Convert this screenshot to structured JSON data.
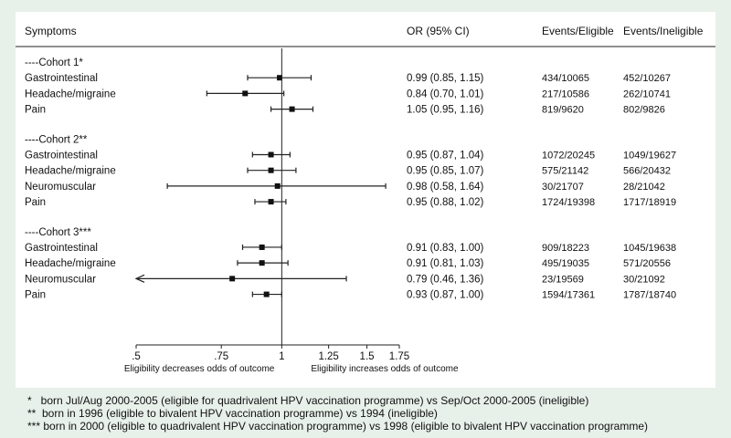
{
  "chart_data": {
    "type": "forest",
    "xscale": "log",
    "xlim": [
      0.5,
      1.75
    ],
    "reference": 1,
    "columns": {
      "symptoms": "Symptoms",
      "or": "OR (95% CI)",
      "eligible": "Events/Eligible",
      "ineligible": "Events/Ineligible"
    },
    "xticks": [
      {
        "label": ".5",
        "value": 0.5
      },
      {
        "label": ".75",
        "value": 0.75
      },
      {
        "label": "1",
        "value": 1
      },
      {
        "label": "1.25",
        "value": 1.25
      },
      {
        "label": "1.5",
        "value": 1.5
      },
      {
        "label": "1.75",
        "value": 1.75
      }
    ],
    "xlabel_left": "Eligibility decreases odds of outcome",
    "xlabel_right": "Eligibility increases odds of outcome",
    "groups": [
      {
        "label": "----Cohort 1*",
        "rows": [
          {
            "symptom": "Gastrointestinal",
            "or": 0.99,
            "lo": 0.85,
            "hi": 1.15,
            "or_text": "0.99 (0.85, 1.15)",
            "eligible": "434/10065",
            "ineligible": "452/10267"
          },
          {
            "symptom": "Headache/migraine",
            "or": 0.84,
            "lo": 0.7,
            "hi": 1.01,
            "or_text": "0.84 (0.70, 1.01)",
            "eligible": "217/10586",
            "ineligible": "262/10741"
          },
          {
            "symptom": "Pain",
            "or": 1.05,
            "lo": 0.95,
            "hi": 1.16,
            "or_text": "1.05 (0.95, 1.16)",
            "eligible": "819/9620",
            "ineligible": "802/9826"
          }
        ]
      },
      {
        "label": "----Cohort 2**",
        "rows": [
          {
            "symptom": "Gastrointestinal",
            "or": 0.95,
            "lo": 0.87,
            "hi": 1.04,
            "or_text": "0.95 (0.87, 1.04)",
            "eligible": "1072/20245",
            "ineligible": "1049/19627"
          },
          {
            "symptom": "Headache/migraine",
            "or": 0.95,
            "lo": 0.85,
            "hi": 1.07,
            "or_text": "0.95 (0.85, 1.07)",
            "eligible": "575/21142",
            "ineligible": "566/20432"
          },
          {
            "symptom": "Neuromuscular",
            "or": 0.98,
            "lo": 0.58,
            "hi": 1.64,
            "or_text": "0.98 (0.58, 1.64)",
            "eligible": "30/21707",
            "ineligible": "28/21042"
          },
          {
            "symptom": "Pain",
            "or": 0.95,
            "lo": 0.88,
            "hi": 1.02,
            "or_text": "0.95 (0.88, 1.02)",
            "eligible": "1724/19398",
            "ineligible": "1717/18919"
          }
        ]
      },
      {
        "label": "----Cohort 3***",
        "rows": [
          {
            "symptom": "Gastrointestinal",
            "or": 0.91,
            "lo": 0.83,
            "hi": 1.0,
            "or_text": "0.91 (0.83, 1.00)",
            "eligible": "909/18223",
            "ineligible": "1045/19638"
          },
          {
            "symptom": "Headache/migraine",
            "or": 0.91,
            "lo": 0.81,
            "hi": 1.03,
            "or_text": "0.91 (0.81, 1.03)",
            "eligible": "495/19035",
            "ineligible": "571/20556"
          },
          {
            "symptom": "Neuromuscular",
            "or": 0.79,
            "lo": 0.46,
            "hi": 1.36,
            "or_text": "0.79 (0.46, 1.36)",
            "eligible": "23/19569",
            "ineligible": "30/21092",
            "truncated_left": true
          },
          {
            "symptom": "Pain",
            "or": 0.93,
            "lo": 0.87,
            "hi": 1.0,
            "or_text": "0.93 (0.87, 1.00)",
            "eligible": "1594/17361",
            "ineligible": "1787/18740"
          }
        ]
      }
    ]
  },
  "footnotes": [
    "*   born Jul/Aug 2000-2005 (eligible for quadrivalent HPV vaccination programme) vs Sep/Oct 2000-2005 (ineligible)",
    "**  born in 1996 (eligible to bivalent HPV vaccination programme) vs 1994 (ineligible)",
    "*** born in 2000 (eligible to quadrivalent HPV vaccination programme) vs 1998 (eligible to bivalent HPV vaccination programme)"
  ]
}
